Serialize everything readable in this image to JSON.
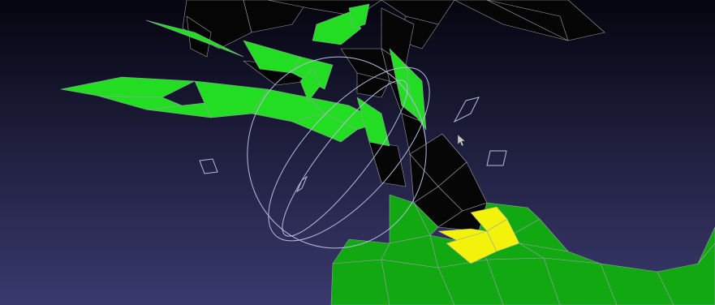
{
  "viewport": {
    "background_top": "#050510",
    "background_bottom": "#3a3a6e"
  },
  "mesh": {
    "color_dark": "#050505",
    "color_bright_green": "#22dd22",
    "color_mid_green": "#12a812",
    "color_deep_green": "#0a6a0a",
    "color_selected": "#f2f20a",
    "color_selected_shade": "#b8b800",
    "wire_color": "#9aa0aa"
  },
  "gizmo": {
    "type": "rotate",
    "color": "#b8bce0"
  },
  "cursor": {
    "icon": "arrow-pointer-icon",
    "color": "#c8c8c8"
  }
}
